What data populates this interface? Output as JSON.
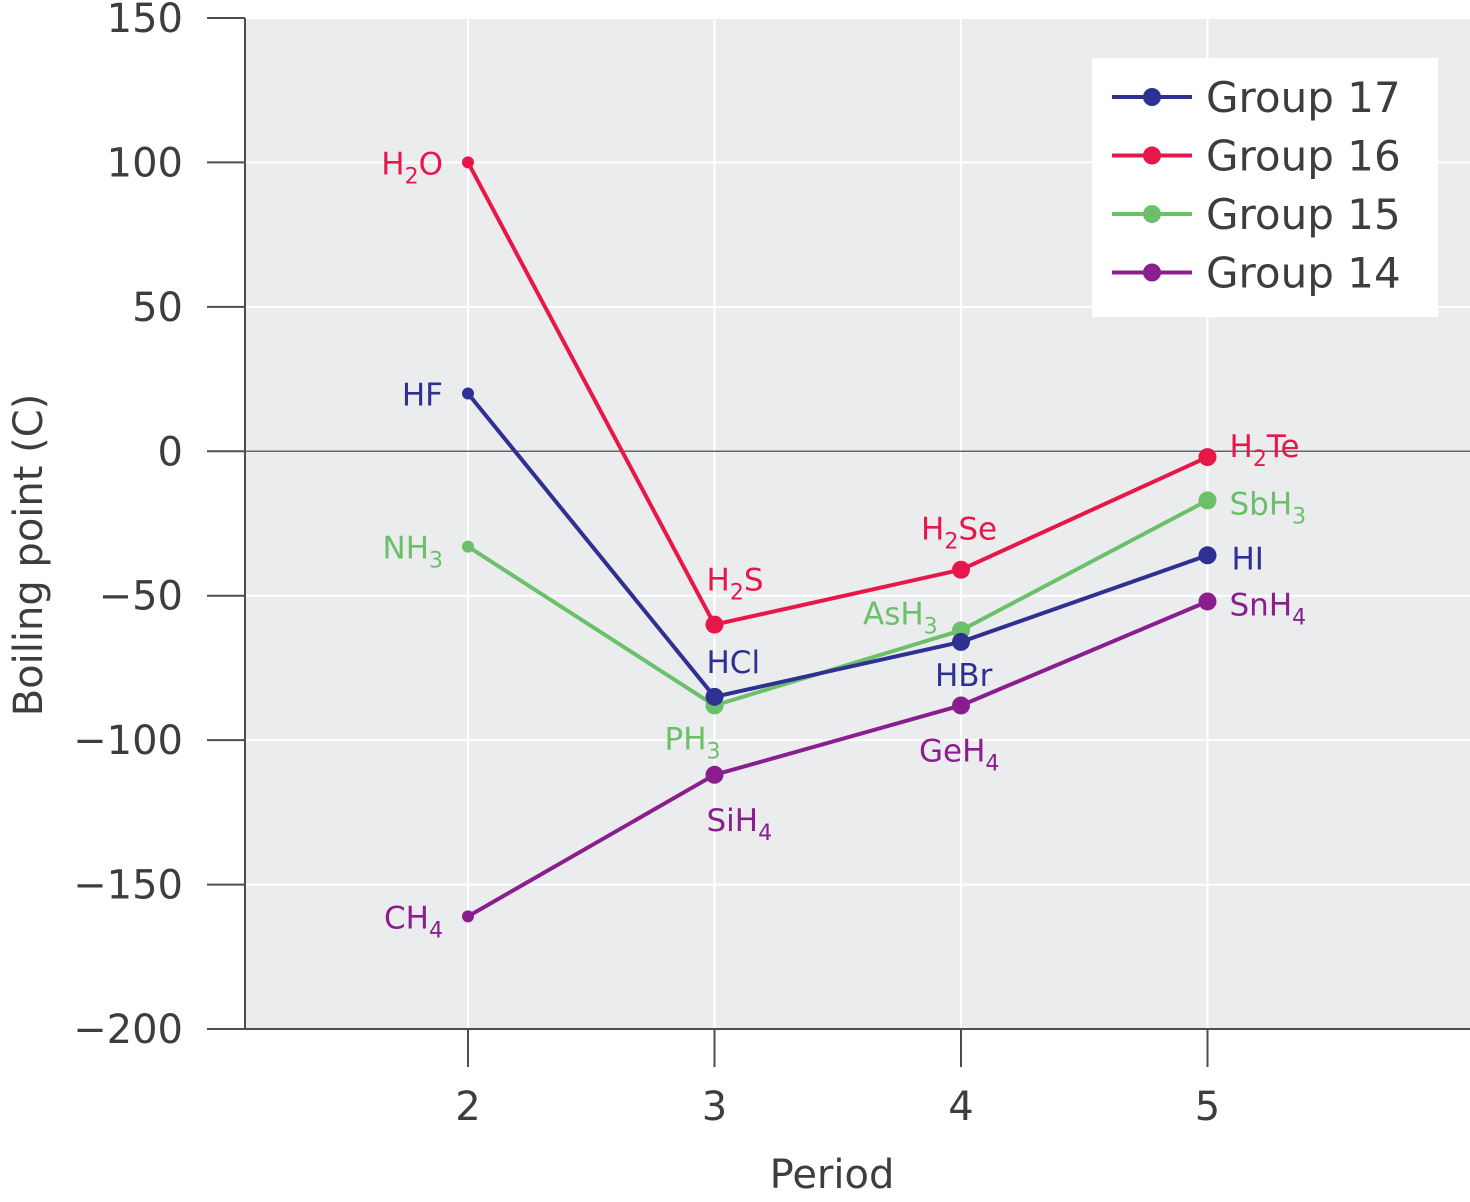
{
  "chart_data": {
    "type": "line",
    "title": "",
    "xlabel": "Period",
    "ylabel": "Boiling point (C)",
    "x": [
      2,
      3,
      4,
      5
    ],
    "xlim": [
      1.1,
      6.0
    ],
    "ylim": [
      -200,
      150
    ],
    "x_ticks": [
      {
        "value": 2,
        "label": "2"
      },
      {
        "value": 3,
        "label": "3"
      },
      {
        "value": 4,
        "label": "4"
      },
      {
        "value": 5,
        "label": "5"
      }
    ],
    "y_ticks": [
      {
        "value": 150,
        "label": "150"
      },
      {
        "value": 100,
        "label": "100"
      },
      {
        "value": 50,
        "label": "50"
      },
      {
        "value": 0,
        "label": "0"
      },
      {
        "value": -50,
        "label": "−50"
      },
      {
        "value": -100,
        "label": "−100"
      },
      {
        "value": -150,
        "label": "−150"
      },
      {
        "value": -200,
        "label": "−200"
      }
    ],
    "grid": true,
    "background_color": "#ebecee",
    "legend_position": "top-right",
    "series": [
      {
        "name": "Group 17",
        "color": "#2e3192",
        "points": [
          {
            "x": 2,
            "y": 20,
            "label": "HF",
            "sub": ""
          },
          {
            "x": 3,
            "y": -85,
            "label": "HCl",
            "sub": ""
          },
          {
            "x": 4,
            "y": -66,
            "label": "HBr",
            "sub": ""
          },
          {
            "x": 5,
            "y": -36,
            "label": "HI",
            "sub": ""
          }
        ]
      },
      {
        "name": "Group 16",
        "color": "#e8174a",
        "points": [
          {
            "x": 2,
            "y": 100,
            "label": "H",
            "sub": "2",
            "tail": "O"
          },
          {
            "x": 3,
            "y": -60,
            "label": "H",
            "sub": "2",
            "tail": "S"
          },
          {
            "x": 4,
            "y": -41,
            "label": "H",
            "sub": "2",
            "tail": "Se"
          },
          {
            "x": 5,
            "y": -2,
            "label": "H",
            "sub": "2",
            "tail": "Te"
          }
        ]
      },
      {
        "name": "Group 15",
        "color": "#6cc069",
        "points": [
          {
            "x": 2,
            "y": -33,
            "label": "NH",
            "sub": "3"
          },
          {
            "x": 3,
            "y": -88,
            "label": "PH",
            "sub": "3"
          },
          {
            "x": 4,
            "y": -62,
            "label": "AsH",
            "sub": "3"
          },
          {
            "x": 5,
            "y": -17,
            "label": "SbH",
            "sub": "3"
          }
        ]
      },
      {
        "name": "Group 14",
        "color": "#8a1e8e",
        "points": [
          {
            "x": 2,
            "y": -161,
            "label": "CH",
            "sub": "4"
          },
          {
            "x": 3,
            "y": -112,
            "label": "SiH",
            "sub": "4"
          },
          {
            "x": 4,
            "y": -88,
            "label": "GeH",
            "sub": "4"
          },
          {
            "x": 5,
            "y": -52,
            "label": "SnH",
            "sub": "4"
          }
        ]
      }
    ]
  }
}
